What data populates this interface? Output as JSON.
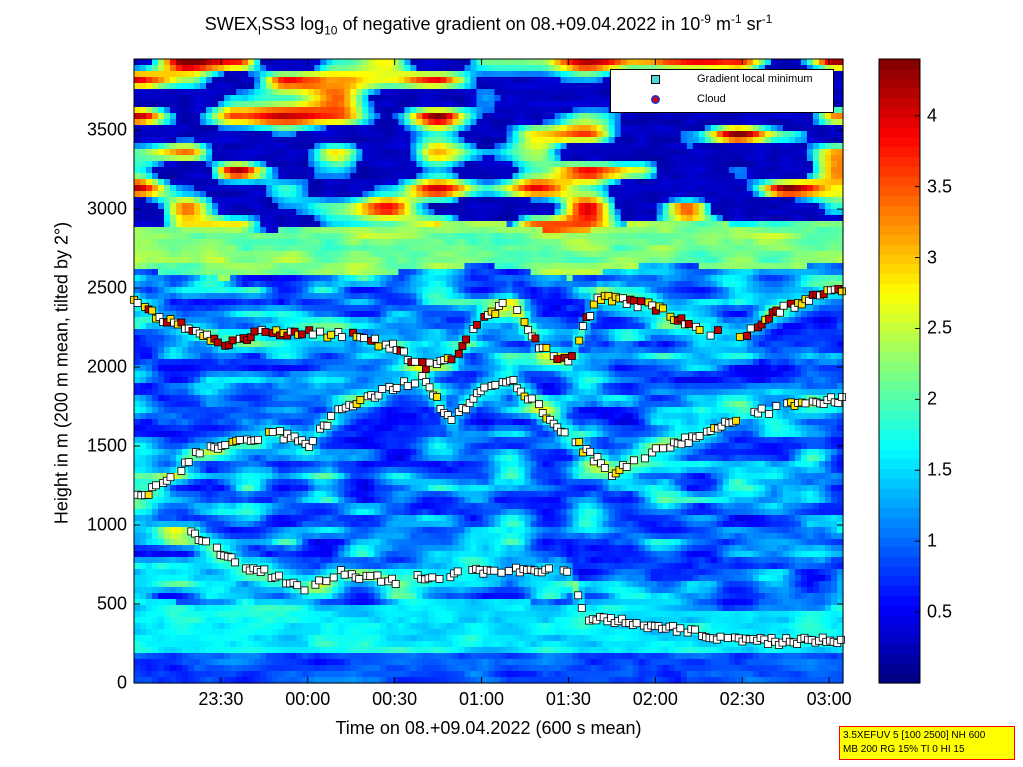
{
  "title": {
    "pre": "SWEX",
    "sub1": "I",
    "mid": "SS3 log",
    "sub2": "10",
    "post": " of negative gradient on 08.+09.04.2022 in 10",
    "exp1": "-9",
    "unit_m": " m",
    "exp2": "-1",
    "unit_sr": " sr",
    "exp3": "-1"
  },
  "chart_data": {
    "type": "heatmap",
    "xlabel": "Time on 08.+09.04.2022 (600 s mean)",
    "ylabel": "Height in m (200 m mean, tilted by 2°)",
    "x_range_hours": [
      23.0,
      27.08
    ],
    "y_range_m": [
      0,
      3950
    ],
    "x_ticks": [
      {
        "v": 23.5,
        "label": "23:30"
      },
      {
        "v": 24.0,
        "label": "00:00"
      },
      {
        "v": 24.5,
        "label": "00:30"
      },
      {
        "v": 25.0,
        "label": "01:00"
      },
      {
        "v": 25.5,
        "label": "01:30"
      },
      {
        "v": 26.0,
        "label": "02:00"
      },
      {
        "v": 26.5,
        "label": "02:30"
      },
      {
        "v": 27.0,
        "label": "03:00"
      }
    ],
    "y_ticks": [
      {
        "v": 0,
        "label": "0"
      },
      {
        "v": 500,
        "label": "500"
      },
      {
        "v": 1000,
        "label": "1000"
      },
      {
        "v": 1500,
        "label": "1500"
      },
      {
        "v": 2000,
        "label": "2000"
      },
      {
        "v": 2500,
        "label": "2500"
      },
      {
        "v": 3000,
        "label": "3000"
      },
      {
        "v": 3500,
        "label": "3500"
      }
    ],
    "colorbar": {
      "range": [
        0,
        4.4
      ],
      "colormap": "jet",
      "ticks": [
        {
          "v": 0.5,
          "label": "0.5"
        },
        {
          "v": 1,
          "label": "1"
        },
        {
          "v": 1.5,
          "label": "1.5"
        },
        {
          "v": 2,
          "label": "2"
        },
        {
          "v": 2.5,
          "label": "2.5"
        },
        {
          "v": 3,
          "label": "3"
        },
        {
          "v": 3.5,
          "label": "3.5"
        },
        {
          "v": 4,
          "label": "4"
        }
      ]
    },
    "legend": {
      "placement": "top-right",
      "entries": [
        {
          "name": "Gradient local minimum",
          "marker": "square",
          "color": "#4dd6d6"
        },
        {
          "name": "Cloud",
          "marker": "circle",
          "color": "#e00000"
        }
      ]
    },
    "layers": [
      {
        "name": "surface layer top",
        "points": [
          [
            23.1,
            520
          ],
          [
            23.5,
            500
          ],
          [
            24.0,
            480
          ],
          [
            24.5,
            510
          ],
          [
            25.0,
            550
          ],
          [
            25.5,
            480
          ],
          [
            26.0,
            450
          ],
          [
            26.5,
            470
          ],
          [
            27.08,
            450
          ]
        ]
      },
      {
        "name": "lower minima track",
        "points": [
          [
            23.33,
            950
          ],
          [
            23.5,
            830
          ],
          [
            23.67,
            730
          ],
          [
            23.83,
            660
          ],
          [
            24.0,
            580
          ],
          [
            24.17,
            700
          ],
          [
            24.5,
            650
          ],
          [
            24.75,
            680
          ],
          [
            25.17,
            720
          ],
          [
            25.5,
            700
          ],
          [
            25.6,
            420
          ],
          [
            26.0,
            360
          ],
          [
            26.25,
            310
          ],
          [
            26.5,
            260
          ],
          [
            26.75,
            265
          ],
          [
            27.08,
            275
          ]
        ]
      },
      {
        "name": "middle minima track",
        "points": [
          [
            23.0,
            1180
          ],
          [
            23.17,
            1250
          ],
          [
            23.33,
            1430
          ],
          [
            23.5,
            1500
          ],
          [
            23.83,
            1580
          ],
          [
            24.0,
            1500
          ],
          [
            24.17,
            1720
          ],
          [
            24.5,
            1880
          ],
          [
            24.67,
            1930
          ],
          [
            24.83,
            1640
          ],
          [
            25.0,
            1870
          ],
          [
            25.17,
            1920
          ],
          [
            25.5,
            1560
          ],
          [
            25.75,
            1330
          ],
          [
            26.0,
            1480
          ],
          [
            26.25,
            1560
          ],
          [
            26.5,
            1690
          ],
          [
            26.75,
            1750
          ],
          [
            27.08,
            1800
          ]
        ]
      },
      {
        "name": "upper minima track",
        "points": [
          [
            23.0,
            2420
          ],
          [
            23.17,
            2300
          ],
          [
            23.33,
            2240
          ],
          [
            23.5,
            2140
          ],
          [
            23.75,
            2220
          ],
          [
            24.0,
            2220
          ],
          [
            24.25,
            2200
          ],
          [
            24.5,
            2120
          ],
          [
            24.67,
            2000
          ],
          [
            24.83,
            2050
          ],
          [
            25.0,
            2300
          ],
          [
            25.17,
            2420
          ],
          [
            25.33,
            2120
          ],
          [
            25.5,
            2040
          ],
          [
            25.67,
            2450
          ],
          [
            26.0,
            2380
          ],
          [
            26.25,
            2220
          ],
          [
            26.5,
            2200
          ],
          [
            26.75,
            2380
          ],
          [
            27.08,
            2500
          ]
        ]
      },
      {
        "name": "aerosol top",
        "points": [
          [
            23.0,
            2620
          ],
          [
            23.5,
            2560
          ],
          [
            24.0,
            2600
          ],
          [
            24.5,
            2600
          ],
          [
            25.0,
            2650
          ],
          [
            25.5,
            2560
          ],
          [
            26.0,
            2660
          ],
          [
            26.5,
            2620
          ],
          [
            27.08,
            2650
          ]
        ]
      }
    ]
  },
  "infobox": {
    "line1": "3.5XEFUV 5 [100 2500] NH 600",
    "line2": "MB 200 RG 15% TI 0 HI 15"
  }
}
